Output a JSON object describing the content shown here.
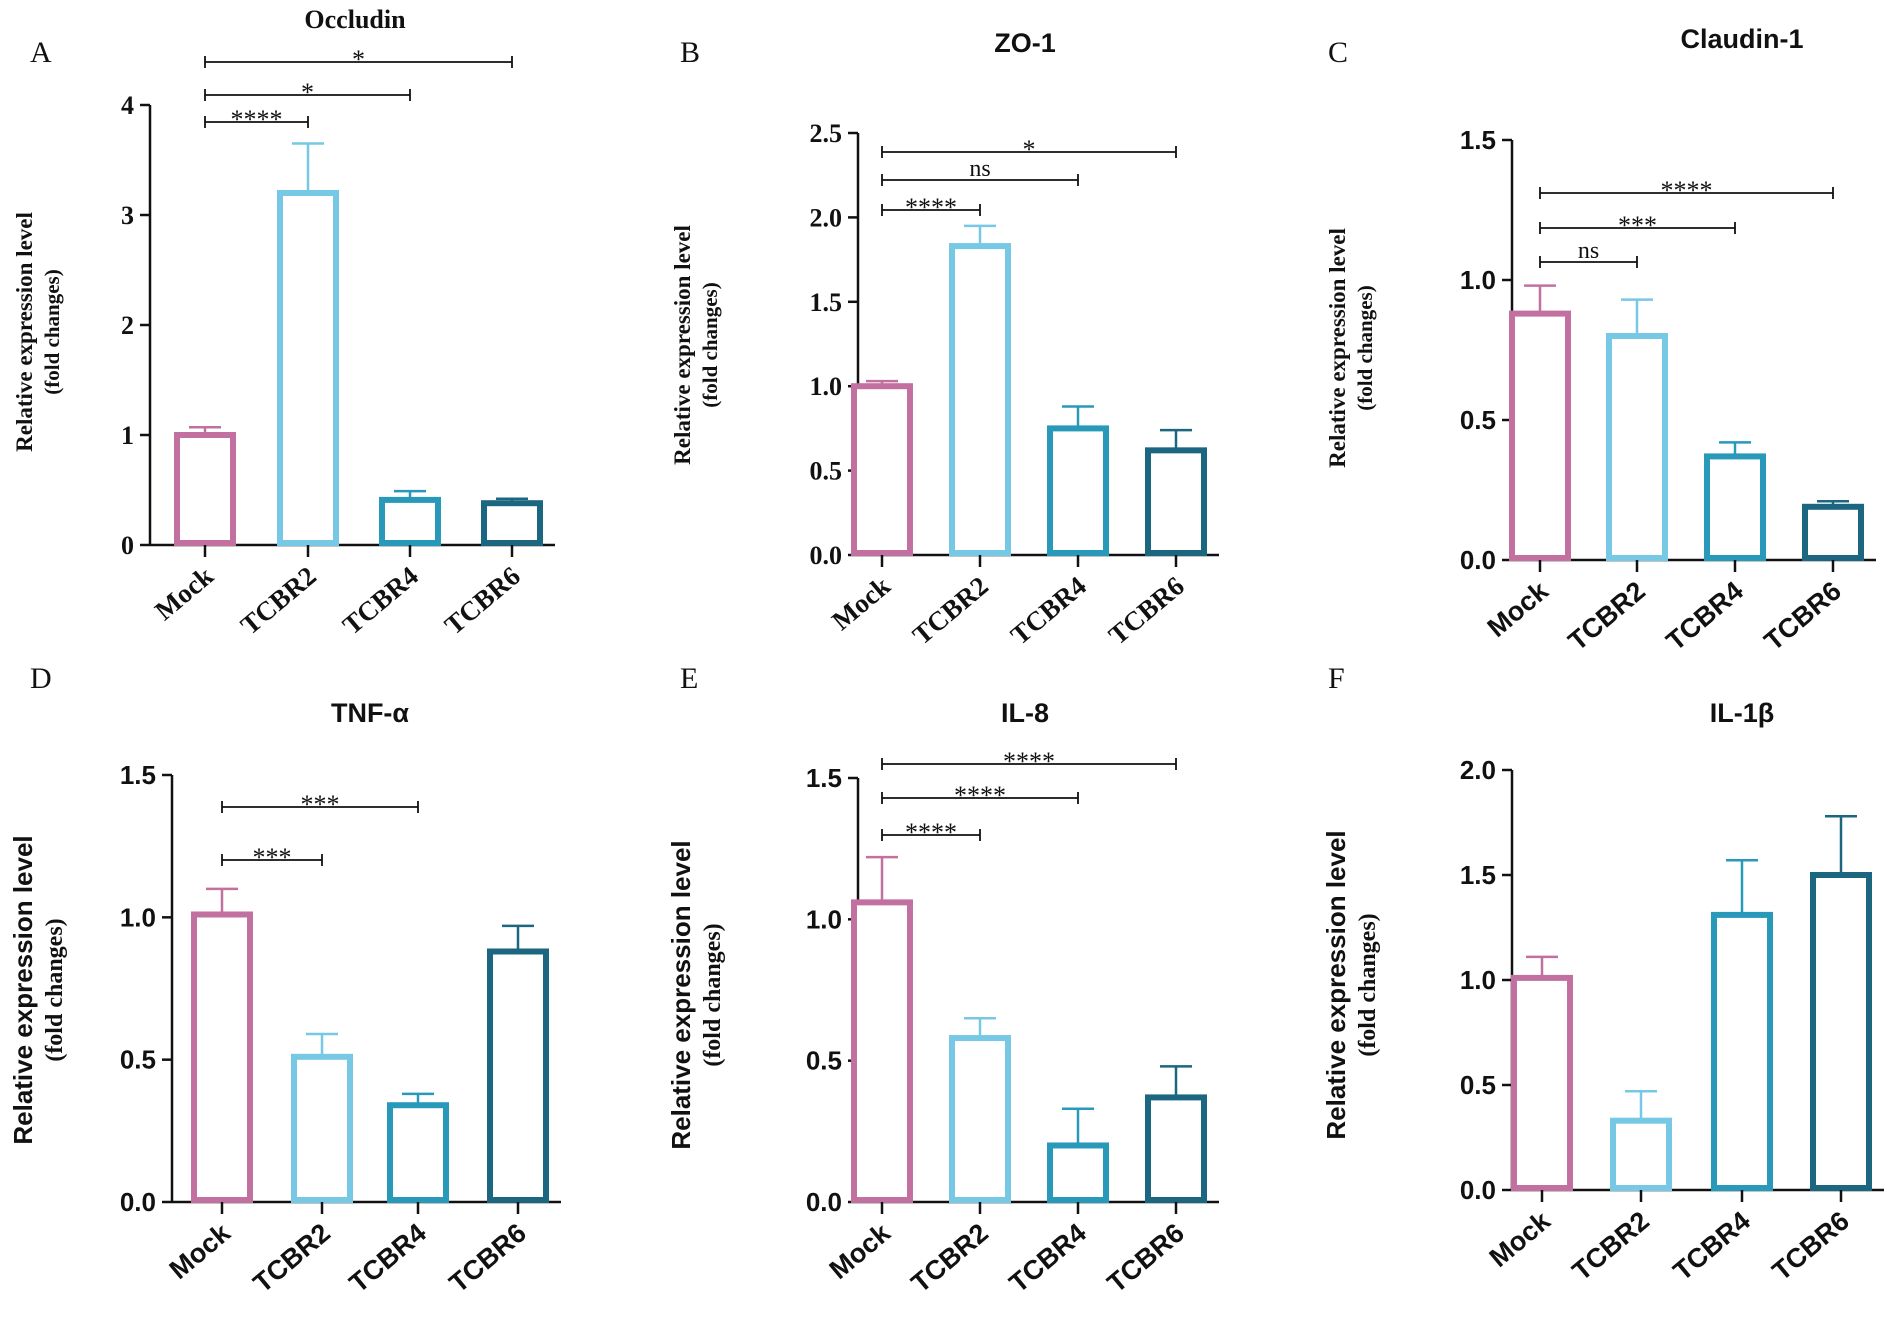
{
  "colors": {
    "Mock": "#c2709f",
    "TCBR2": "#76c8e4",
    "TCBR4": "#2899b9",
    "TCBR6": "#1d6680",
    "axis": "#111111"
  },
  "chart_data": [
    {
      "panel": "A",
      "type": "bar",
      "title": "Occludin",
      "title_font": "serif",
      "categories": [
        "Mock",
        "TCBR2",
        "TCBR4",
        "TCBR6"
      ],
      "values": [
        1.0,
        3.2,
        0.41,
        0.38
      ],
      "errors": [
        0.07,
        0.45,
        0.08,
        0.04
      ],
      "ylim": [
        0,
        4
      ],
      "yticks": [
        "0",
        "1",
        "2",
        "3",
        "4"
      ],
      "ylabel": [
        "Relative expression level",
        "(fold changes)"
      ],
      "ylabel_font": "serif",
      "tick_font": "serif",
      "comparisons": [
        {
          "from": "Mock",
          "to": "TCBR2",
          "label": "****"
        },
        {
          "from": "Mock",
          "to": "TCBR4",
          "label": "*"
        },
        {
          "from": "Mock",
          "to": "TCBR6",
          "label": "*"
        }
      ]
    },
    {
      "panel": "B",
      "type": "bar",
      "title": "ZO-1",
      "title_font": "sans",
      "categories": [
        "Mock",
        "TCBR2",
        "TCBR4",
        "TCBR6"
      ],
      "values": [
        1.0,
        1.83,
        0.75,
        0.62
      ],
      "errors": [
        0.03,
        0.12,
        0.13,
        0.12
      ],
      "ylim": [
        0,
        2.5
      ],
      "yticks": [
        "0.0",
        "0.5",
        "1.0",
        "1.5",
        "2.0",
        "2.5"
      ],
      "ylabel": [
        "Relative expression level",
        "(fold changes)"
      ],
      "ylabel_font": "serif",
      "tick_font": "serif",
      "comparisons": [
        {
          "from": "Mock",
          "to": "TCBR2",
          "label": "****"
        },
        {
          "from": "Mock",
          "to": "TCBR4",
          "label": "ns"
        },
        {
          "from": "Mock",
          "to": "TCBR6",
          "label": "*"
        }
      ]
    },
    {
      "panel": "C",
      "type": "bar",
      "title": "Claudin-1",
      "title_font": "sans",
      "categories": [
        "Mock",
        "TCBR2",
        "TCBR4",
        "TCBR6"
      ],
      "values": [
        0.88,
        0.8,
        0.37,
        0.19
      ],
      "errors": [
        0.1,
        0.13,
        0.05,
        0.02
      ],
      "ylim": [
        0,
        1.5
      ],
      "yticks": [
        "0.0",
        "0.5",
        "1.0",
        "1.5"
      ],
      "ylabel": [
        "Relative expression level",
        "(fold changes)"
      ],
      "ylabel_font": "serif",
      "tick_font": "sans",
      "comparisons": [
        {
          "from": "Mock",
          "to": "TCBR2",
          "label": "ns"
        },
        {
          "from": "Mock",
          "to": "TCBR4",
          "label": "***"
        },
        {
          "from": "Mock",
          "to": "TCBR6",
          "label": "****"
        }
      ]
    },
    {
      "panel": "D",
      "type": "bar",
      "title": "TNF-α",
      "title_font": "sans",
      "categories": [
        "Mock",
        "TCBR2",
        "TCBR4",
        "TCBR6"
      ],
      "values": [
        1.01,
        0.51,
        0.34,
        0.88
      ],
      "errors": [
        0.09,
        0.08,
        0.04,
        0.09
      ],
      "ylim": [
        0,
        1.5
      ],
      "yticks": [
        "0.0",
        "0.5",
        "1.0",
        "1.5"
      ],
      "ylabel": [
        "Relative expression level",
        "(fold changes)"
      ],
      "ylabel_font": "mixed",
      "tick_font": "sans",
      "comparisons": [
        {
          "from": "Mock",
          "to": "TCBR2",
          "label": "***"
        },
        {
          "from": "Mock",
          "to": "TCBR4",
          "label": "***"
        }
      ]
    },
    {
      "panel": "E",
      "type": "bar",
      "title": "IL-8",
      "title_font": "sans",
      "categories": [
        "Mock",
        "TCBR2",
        "TCBR4",
        "TCBR6"
      ],
      "values": [
        1.06,
        0.58,
        0.2,
        0.37
      ],
      "errors": [
        0.16,
        0.07,
        0.13,
        0.11
      ],
      "ylim": [
        0,
        1.5
      ],
      "yticks": [
        "0.0",
        "0.5",
        "1.0",
        "1.5"
      ],
      "ylabel": [
        "Relative expression level",
        "(fold changes)"
      ],
      "ylabel_font": "mixed",
      "tick_font": "sans",
      "comparisons": [
        {
          "from": "Mock",
          "to": "TCBR2",
          "label": "****"
        },
        {
          "from": "Mock",
          "to": "TCBR4",
          "label": "****"
        },
        {
          "from": "Mock",
          "to": "TCBR6",
          "label": "****"
        }
      ]
    },
    {
      "panel": "F",
      "type": "bar",
      "title": "IL-1β",
      "title_font": "sans",
      "categories": [
        "Mock",
        "TCBR2",
        "TCBR4",
        "TCBR6"
      ],
      "values": [
        1.01,
        0.33,
        1.31,
        1.5
      ],
      "errors": [
        0.1,
        0.14,
        0.26,
        0.28
      ],
      "ylim": [
        0,
        2.0
      ],
      "yticks": [
        "0.0",
        "0.5",
        "1.0",
        "1.5",
        "2.0"
      ],
      "ylabel": [
        "Relative expression level",
        "(fold changes)"
      ],
      "ylabel_font": "mixed",
      "tick_font": "sans",
      "comparisons": []
    }
  ]
}
